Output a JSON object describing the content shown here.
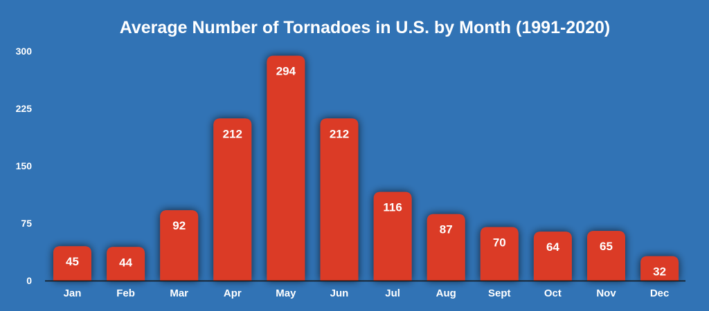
{
  "chart_data": {
    "type": "bar",
    "title": "Average Number of Tornadoes in U.S. by Month (1991-2020)",
    "categories": [
      "Jan",
      "Feb",
      "Mar",
      "Apr",
      "May",
      "Jun",
      "Jul",
      "Aug",
      "Sept",
      "Oct",
      "Nov",
      "Dec"
    ],
    "values": [
      45,
      44,
      92,
      212,
      294,
      212,
      116,
      87,
      70,
      64,
      65,
      32
    ],
    "yticks": [
      0,
      75,
      150,
      225,
      300
    ],
    "ylim": [
      0,
      300
    ],
    "xlabel": "",
    "ylabel": "",
    "grid": false,
    "background_color": "#3173B5",
    "bar_color": "#DB3B26",
    "data_labels": true
  }
}
